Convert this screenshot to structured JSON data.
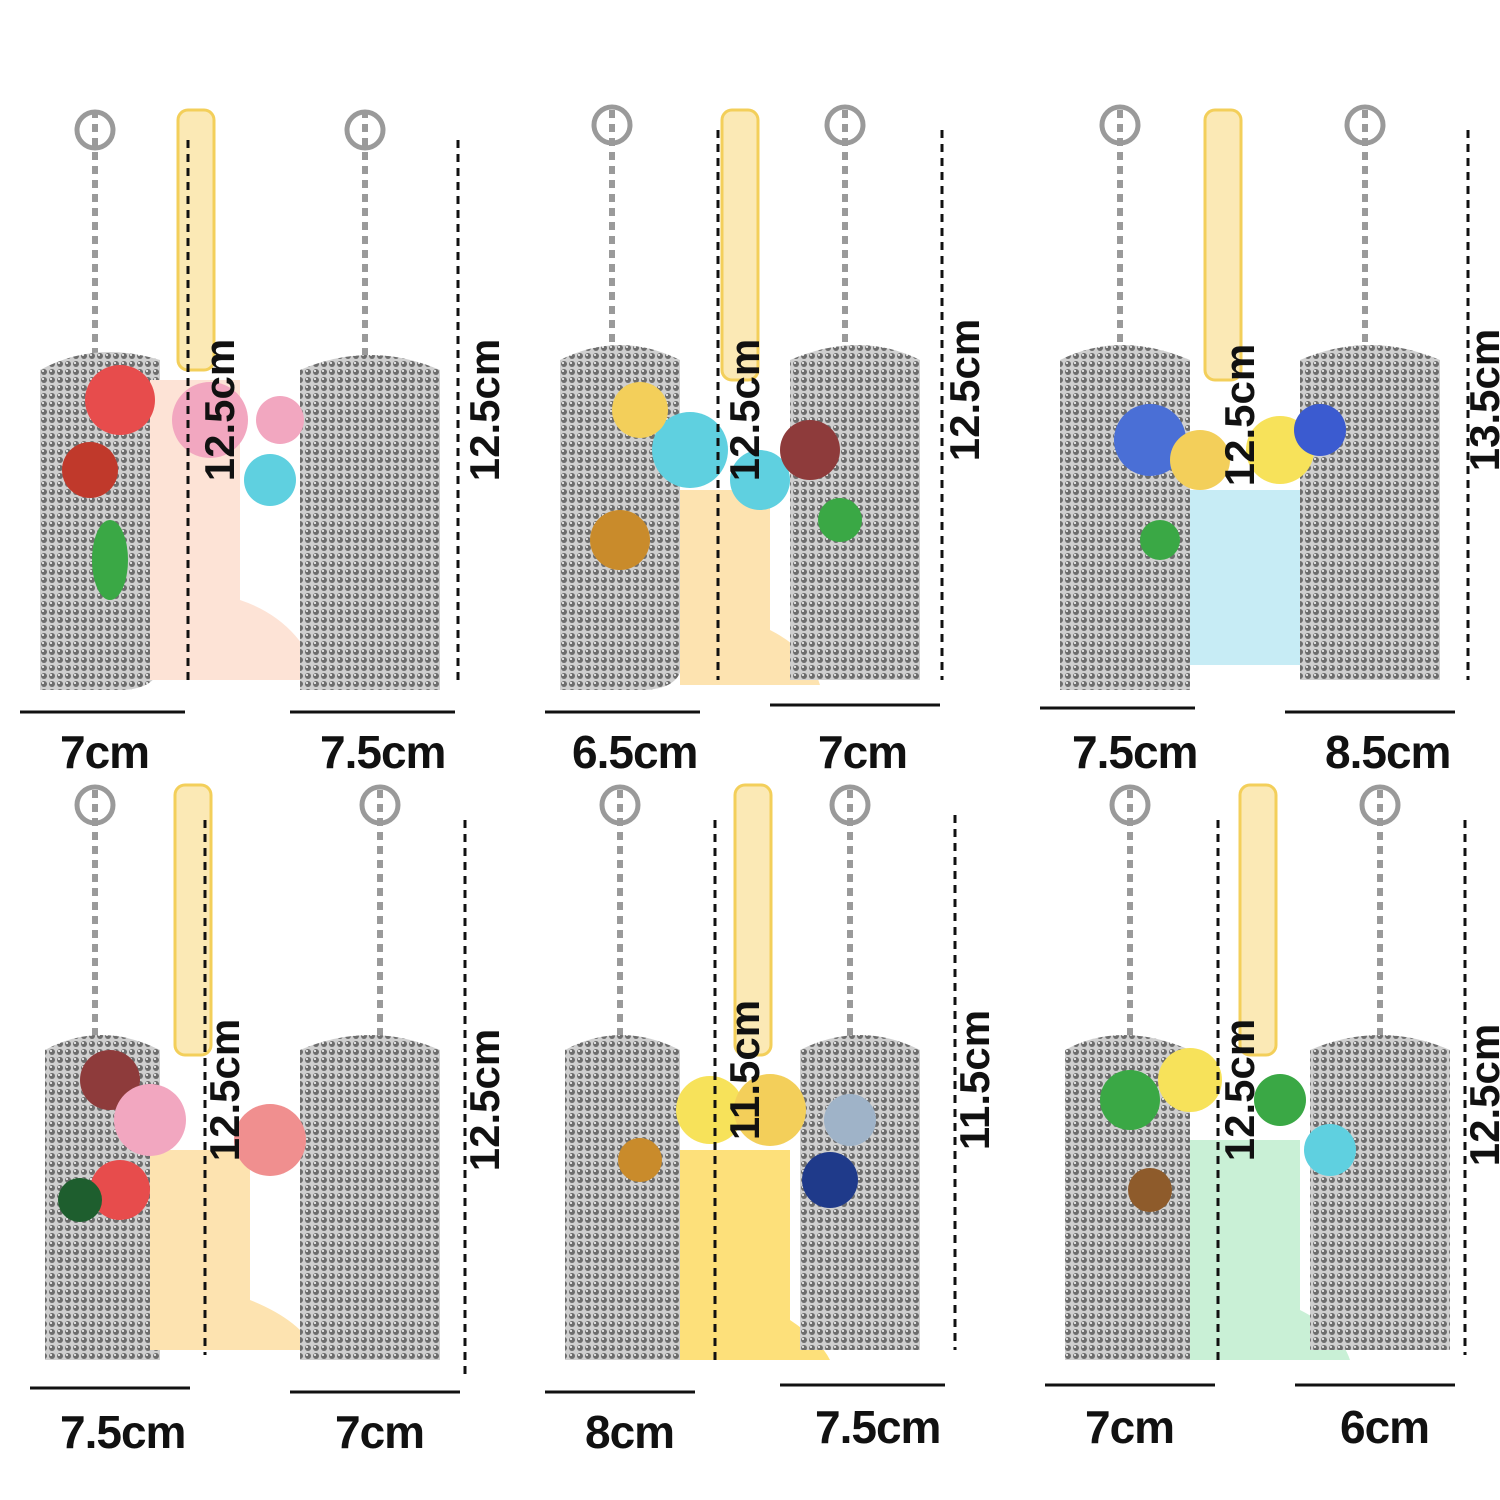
{
  "row1": {
    "widths": [
      "7cm",
      "7.5cm",
      "6.5cm",
      "7cm",
      "7.5cm",
      "8.5cm"
    ],
    "heights": [
      "12.5cm",
      "12.5cm",
      "12.5cm",
      "12.5cm",
      "12.5cm",
      "13.5cm"
    ]
  },
  "row2": {
    "widths": [
      "7.5cm",
      "7cm",
      "8cm",
      "7.5cm",
      "7cm",
      "6cm"
    ],
    "heights": [
      "12.5cm",
      "12.5cm",
      "11.5cm",
      "11.5cm",
      "12.5cm",
      "12.5cm"
    ]
  },
  "colors": {
    "chain": "#9a9a9a",
    "gold": "#f3cf5a",
    "ink": "#111111"
  }
}
